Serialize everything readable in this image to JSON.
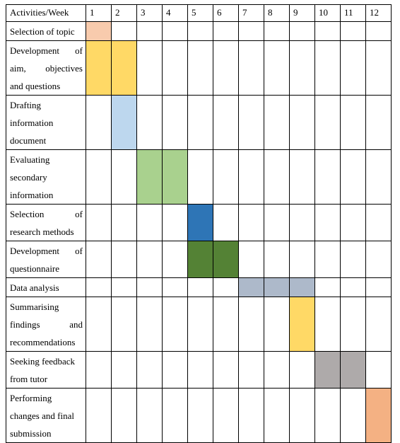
{
  "table": {
    "header_label": "Activities/Week",
    "weeks": [
      "1",
      "2",
      "3",
      "4",
      "5",
      "6",
      "7",
      "8",
      "9",
      "10",
      "11",
      "12"
    ],
    "rows": [
      {
        "lines": [
          "Selection of topic"
        ],
        "justify": [
          false
        ],
        "start": 1,
        "end": 1,
        "color": "#f8cbad"
      },
      {
        "lines": [
          "Development of",
          "aim, objectives",
          "and questions"
        ],
        "justify": [
          true,
          true,
          false
        ],
        "start": 1,
        "end": 2,
        "color": "#ffd966"
      },
      {
        "lines": [
          "Drafting",
          "information",
          "document"
        ],
        "justify": [
          false,
          false,
          false
        ],
        "start": 2,
        "end": 2,
        "color": "#bdd7ee"
      },
      {
        "lines": [
          "Evaluating",
          "secondary",
          "information"
        ],
        "justify": [
          false,
          false,
          false
        ],
        "start": 3,
        "end": 4,
        "color": "#a9d18e"
      },
      {
        "lines": [
          "Selection of",
          "research methods"
        ],
        "justify": [
          true,
          false
        ],
        "start": 5,
        "end": 5,
        "color": "#2e75b6"
      },
      {
        "lines": [
          "Development of",
          "questionnaire"
        ],
        "justify": [
          true,
          false
        ],
        "start": 5,
        "end": 6,
        "color": "#548235"
      },
      {
        "lines": [
          "Data analysis"
        ],
        "justify": [
          false
        ],
        "start": 7,
        "end": 9,
        "color": "#adb9ca"
      },
      {
        "lines": [
          "Summarising",
          "findings and",
          "recommendations"
        ],
        "justify": [
          false,
          true,
          false
        ],
        "start": 9,
        "end": 9,
        "color": "#ffd966"
      },
      {
        "lines": [
          "Seeking feedback",
          "from tutor"
        ],
        "justify": [
          false,
          false
        ],
        "start": 10,
        "end": 11,
        "color": "#aeaaaa"
      },
      {
        "lines": [
          "Performing",
          "changes and final",
          "submission"
        ],
        "justify": [
          false,
          false,
          false
        ],
        "start": 12,
        "end": 12,
        "color": "#f4b183"
      }
    ]
  }
}
